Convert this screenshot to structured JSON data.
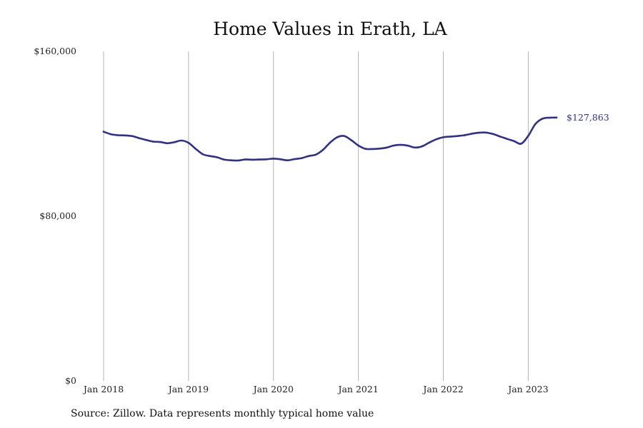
{
  "chart_data": {
    "type": "line",
    "title": "Home Values in Erath, LA",
    "xlabel": "",
    "ylabel": "",
    "ylim": [
      0,
      160000
    ],
    "y_ticks": [
      {
        "value": 0,
        "label": "$0"
      },
      {
        "value": 80000,
        "label": "$80,000"
      },
      {
        "value": 160000,
        "label": "$160,000"
      }
    ],
    "x_ticks": [
      {
        "value": "2018-01",
        "label": "Jan 2018"
      },
      {
        "value": "2019-01",
        "label": "Jan 2019"
      },
      {
        "value": "2020-01",
        "label": "Jan 2020"
      },
      {
        "value": "2021-01",
        "label": "Jan 2021"
      },
      {
        "value": "2022-01",
        "label": "Jan 2022"
      },
      {
        "value": "2023-01",
        "label": "Jan 2023"
      }
    ],
    "xlim": [
      "2018-01",
      "2023-05"
    ],
    "grid": "vertical",
    "color": "#2e3192",
    "end_label": "$127,863",
    "series": [
      {
        "x": [
          "2018-01",
          "2018-02",
          "2018-03",
          "2018-04",
          "2018-05",
          "2018-06",
          "2018-07",
          "2018-08",
          "2018-09",
          "2018-10",
          "2018-11",
          "2018-12",
          "2019-01",
          "2019-02",
          "2019-03",
          "2019-04",
          "2019-05",
          "2019-06",
          "2019-07",
          "2019-08",
          "2019-09",
          "2019-10",
          "2019-11",
          "2019-12",
          "2020-01",
          "2020-02",
          "2020-03",
          "2020-04",
          "2020-05",
          "2020-06",
          "2020-07",
          "2020-08",
          "2020-09",
          "2020-10",
          "2020-11",
          "2020-12",
          "2021-01",
          "2021-02",
          "2021-03",
          "2021-04",
          "2021-05",
          "2021-06",
          "2021-07",
          "2021-08",
          "2021-09",
          "2021-10",
          "2021-11",
          "2021-12",
          "2022-01",
          "2022-02",
          "2022-03",
          "2022-04",
          "2022-05",
          "2022-06",
          "2022-07",
          "2022-08",
          "2022-09",
          "2022-10",
          "2022-11",
          "2022-12",
          "2023-01",
          "2023-02",
          "2023-03",
          "2023-04",
          "2023-05"
        ],
        "values": [
          121000,
          119800,
          119300,
          119200,
          118900,
          117900,
          117000,
          116200,
          116000,
          115400,
          115900,
          116700,
          115600,
          112700,
          110100,
          109200,
          108600,
          107500,
          107100,
          107000,
          107500,
          107400,
          107500,
          107600,
          107900,
          107600,
          107100,
          107700,
          108200,
          109200,
          109900,
          112200,
          115700,
          118300,
          118900,
          116900,
          114300,
          112700,
          112600,
          112800,
          113300,
          114300,
          114600,
          114200,
          113300,
          113900,
          115700,
          117300,
          118300,
          118600,
          118900,
          119300,
          120000,
          120500,
          120600,
          119900,
          118700,
          117500,
          116400,
          115200,
          119000,
          124700,
          127300,
          127800,
          127863
        ]
      }
    ]
  },
  "footer": {
    "source": "Source: Zillow. Data represents monthly typical home value"
  }
}
